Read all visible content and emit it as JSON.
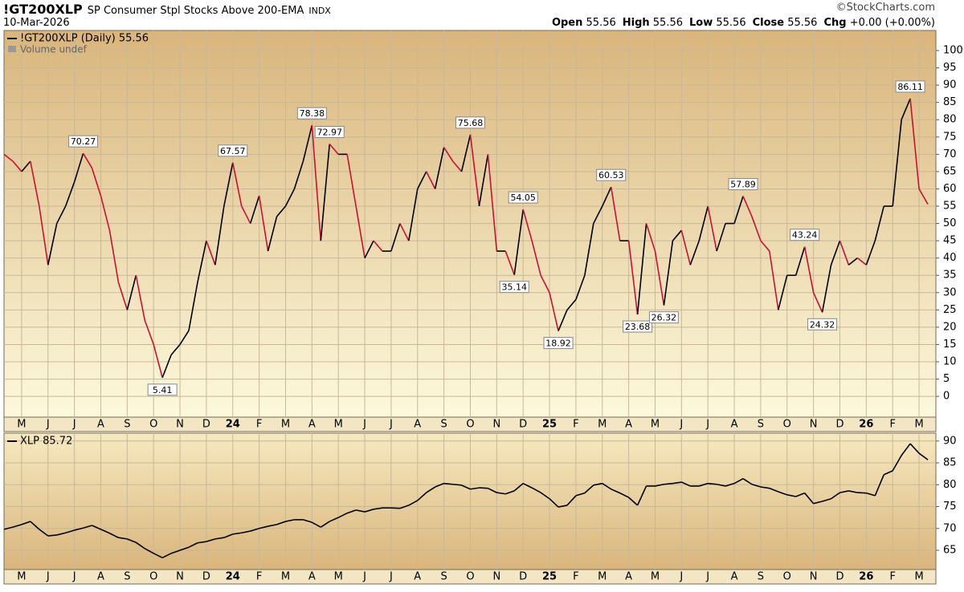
{
  "header": {
    "symbol": "!GT200XLP",
    "description": "SP Consumer Stpl Stocks Above 200-EMA",
    "exchange": "INDX",
    "source": "©StockCharts.com",
    "date": "10-Mar-2026",
    "quote": [
      {
        "label": "Open",
        "value": 55.56
      },
      {
        "label": "High",
        "value": 55.56
      },
      {
        "label": "Low",
        "value": 55.56
      },
      {
        "label": "Close",
        "value": 55.56
      },
      {
        "label": "Chg",
        "value": "+0.00 (+0.00%)"
      }
    ]
  },
  "chart_data": [
    {
      "type": "line",
      "note": "Volume undef",
      "grid": true,
      "categories": [
        null,
        null,
        "M",
        null,
        null,
        "J",
        null,
        null,
        "J",
        null,
        null,
        "A",
        null,
        null,
        "S",
        null,
        null,
        "O",
        null,
        null,
        "N",
        null,
        null,
        "D",
        null,
        null,
        "24",
        null,
        null,
        "F",
        null,
        null,
        "M",
        null,
        null,
        "A",
        null,
        null,
        "M",
        null,
        null,
        "J",
        null,
        null,
        "J",
        null,
        null,
        "A",
        null,
        null,
        "S",
        null,
        null,
        "O",
        null,
        null,
        "N",
        null,
        null,
        "D",
        null,
        null,
        "25",
        null,
        null,
        "F",
        null,
        null,
        "M",
        null,
        null,
        "A",
        null,
        null,
        "M",
        null,
        null,
        "J",
        null,
        null,
        "J",
        null,
        null,
        "A",
        null,
        null,
        "S",
        null,
        null,
        "O",
        null,
        null,
        "N",
        null,
        null,
        "D",
        null,
        null,
        "26",
        null,
        null,
        "F",
        null,
        null,
        "M",
        null
      ],
      "ylim": [
        -6,
        105.8
      ],
      "yticks": [
        0,
        5,
        10,
        15,
        20,
        25,
        30,
        35,
        40,
        45,
        50,
        55,
        60,
        65,
        70,
        75,
        80,
        85,
        90,
        95,
        100
      ],
      "series": [
        {
          "name": "!GT200XLP (Daily) 55.56",
          "color": "#000000",
          "down_color": "#cc1030",
          "values": [
            70,
            68,
            65,
            68,
            55,
            38,
            50,
            55,
            62,
            70.27,
            66,
            58,
            48,
            33,
            25,
            35,
            22,
            15,
            5.41,
            12,
            15,
            19,
            33,
            45,
            38,
            55,
            67.57,
            55,
            50,
            58,
            42,
            52,
            55,
            60,
            68,
            78.38,
            45,
            72.97,
            70,
            70,
            55,
            40,
            45,
            42,
            42,
            50,
            45,
            60,
            65,
            60,
            72,
            68,
            65,
            75.68,
            55,
            70,
            42,
            42,
            35.14,
            54.05,
            45,
            35,
            30,
            18.92,
            25,
            28,
            35,
            50,
            55,
            60.53,
            45,
            45,
            23.68,
            50,
            42,
            26.32,
            45,
            48,
            38,
            45,
            55,
            42,
            50,
            50,
            57.89,
            52,
            45,
            42,
            25,
            35,
            35,
            43.24,
            30,
            24.32,
            38,
            45,
            38,
            40,
            38,
            45,
            55,
            55,
            80,
            86.11,
            60,
            55.56
          ],
          "value_labels": [
            null,
            null,
            null,
            null,
            null,
            null,
            null,
            null,
            null,
            "70.27",
            null,
            null,
            null,
            null,
            null,
            null,
            null,
            null,
            "5.41",
            null,
            null,
            null,
            null,
            null,
            null,
            null,
            "67.57",
            null,
            null,
            null,
            null,
            null,
            null,
            null,
            null,
            "78.38",
            null,
            "72.97",
            null,
            null,
            null,
            null,
            null,
            null,
            null,
            null,
            null,
            null,
            null,
            null,
            null,
            null,
            null,
            "75.68",
            null,
            null,
            null,
            null,
            "35.14",
            "54.05",
            null,
            null,
            null,
            "18.92",
            null,
            null,
            null,
            null,
            null,
            "60.53",
            null,
            null,
            "23.68",
            null,
            null,
            "26.32",
            null,
            null,
            null,
            null,
            null,
            null,
            null,
            null,
            "57.89",
            null,
            null,
            null,
            null,
            null,
            null,
            "43.24",
            null,
            "24.32",
            null,
            null,
            null,
            null,
            null,
            null,
            null,
            null,
            null,
            "86.11",
            null,
            null
          ]
        }
      ]
    },
    {
      "type": "line",
      "grid": true,
      "categories": [
        null,
        null,
        "M",
        null,
        null,
        "J",
        null,
        null,
        "J",
        null,
        null,
        "A",
        null,
        null,
        "S",
        null,
        null,
        "O",
        null,
        null,
        "N",
        null,
        null,
        "D",
        null,
        null,
        "24",
        null,
        null,
        "F",
        null,
        null,
        "M",
        null,
        null,
        "A",
        null,
        null,
        "M",
        null,
        null,
        "J",
        null,
        null,
        "J",
        null,
        null,
        "A",
        null,
        null,
        "S",
        null,
        null,
        "O",
        null,
        null,
        "N",
        null,
        null,
        "D",
        null,
        null,
        "25",
        null,
        null,
        "F",
        null,
        null,
        "M",
        null,
        null,
        "A",
        null,
        null,
        "M",
        null,
        null,
        "J",
        null,
        null,
        "J",
        null,
        null,
        "A",
        null,
        null,
        "S",
        null,
        null,
        "O",
        null,
        null,
        "N",
        null,
        null,
        "D",
        null,
        null,
        "26",
        null,
        null,
        "F",
        null,
        null,
        "M",
        null
      ],
      "ylim": [
        60.6,
        91.8
      ],
      "yticks": [
        65,
        70,
        75,
        80,
        85,
        90
      ],
      "series": [
        {
          "name": "XLP 85.72",
          "color": "#000000",
          "values": [
            69.8,
            70.3,
            70.9,
            71.6,
            69.8,
            68.3,
            68.5,
            69,
            69.6,
            70.1,
            70.7,
            69.8,
            68.9,
            67.9,
            67.6,
            66.8,
            65.4,
            64.3,
            63.3,
            64.3,
            65,
            65.7,
            66.7,
            67,
            67.6,
            67.9,
            68.7,
            69,
            69.4,
            70,
            70.5,
            70.9,
            71.6,
            72,
            72,
            71.4,
            70.3,
            71.6,
            72.5,
            73.5,
            74.2,
            73.8,
            74.4,
            74.7,
            74.7,
            74.6,
            75.3,
            76.4,
            78.2,
            79.5,
            80.3,
            80.1,
            79.9,
            79,
            79.3,
            79.2,
            78.2,
            77.9,
            78.6,
            80.3,
            79.3,
            78.2,
            76.8,
            74.9,
            75.3,
            77.5,
            78.1,
            79.9,
            80.3,
            79,
            78.1,
            77.1,
            75.3,
            79.7,
            79.7,
            80.1,
            80.3,
            80.6,
            79.7,
            79.7,
            80.3,
            80.1,
            79.7,
            80.3,
            81.4,
            80.1,
            79.5,
            79.2,
            78.4,
            77.7,
            77.3,
            78.1,
            75.7,
            76.2,
            76.8,
            78.2,
            78.6,
            78.2,
            78.1,
            77.5,
            82.3,
            83.2,
            86.7,
            89.4,
            87.2,
            85.72
          ]
        }
      ]
    }
  ]
}
